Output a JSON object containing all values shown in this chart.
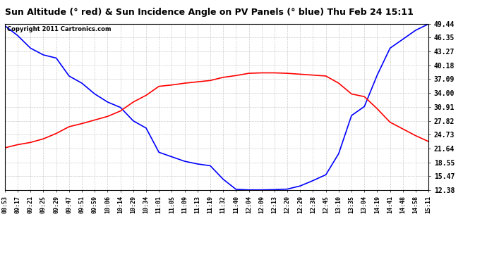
{
  "title": "Sun Altitude (° red) & Sun Incidence Angle on PV Panels (° blue) Thu Feb 24 15:11",
  "copyright": "Copyright 2011 Cartronics.com",
  "background_color": "#ffffff",
  "grid_color": "#cccccc",
  "ylim": [
    12.38,
    49.44
  ],
  "yticks": [
    12.38,
    15.47,
    18.55,
    21.64,
    24.73,
    27.82,
    30.91,
    34.0,
    37.09,
    40.18,
    43.27,
    46.35,
    49.44
  ],
  "xtick_labels": [
    "08:53",
    "09:17",
    "09:21",
    "09:25",
    "09:29",
    "09:47",
    "09:51",
    "09:59",
    "10:06",
    "10:14",
    "10:29",
    "10:34",
    "11:01",
    "11:05",
    "11:09",
    "11:13",
    "11:19",
    "11:32",
    "11:40",
    "12:04",
    "12:09",
    "12:13",
    "12:20",
    "12:29",
    "12:38",
    "12:45",
    "13:10",
    "13:35",
    "13:04",
    "14:19",
    "14:41",
    "14:48",
    "14:58",
    "15:11"
  ],
  "blue_y": [
    49.0,
    46.8,
    44.0,
    42.5,
    41.8,
    37.8,
    36.2,
    33.8,
    32.0,
    30.8,
    27.8,
    26.2,
    20.8,
    19.8,
    18.8,
    18.2,
    17.8,
    14.8,
    12.55,
    12.42,
    12.42,
    12.48,
    12.6,
    13.3,
    14.5,
    15.8,
    20.5,
    29.0,
    31.0,
    38.0,
    44.0,
    46.0,
    48.0,
    49.4
  ],
  "red_y": [
    21.8,
    22.5,
    23.0,
    23.8,
    25.0,
    26.5,
    27.2,
    28.0,
    28.8,
    30.0,
    32.0,
    33.5,
    35.5,
    35.8,
    36.2,
    36.5,
    36.8,
    37.5,
    37.9,
    38.4,
    38.5,
    38.5,
    38.4,
    38.2,
    38.0,
    37.8,
    36.2,
    33.8,
    33.2,
    30.5,
    27.5,
    26.0,
    24.5,
    23.2
  ],
  "blue_color": "#0000ff",
  "red_color": "#ff0000",
  "title_fontsize": 9,
  "tick_fontsize": 6,
  "ytick_fontsize": 7,
  "linewidth": 1.2
}
